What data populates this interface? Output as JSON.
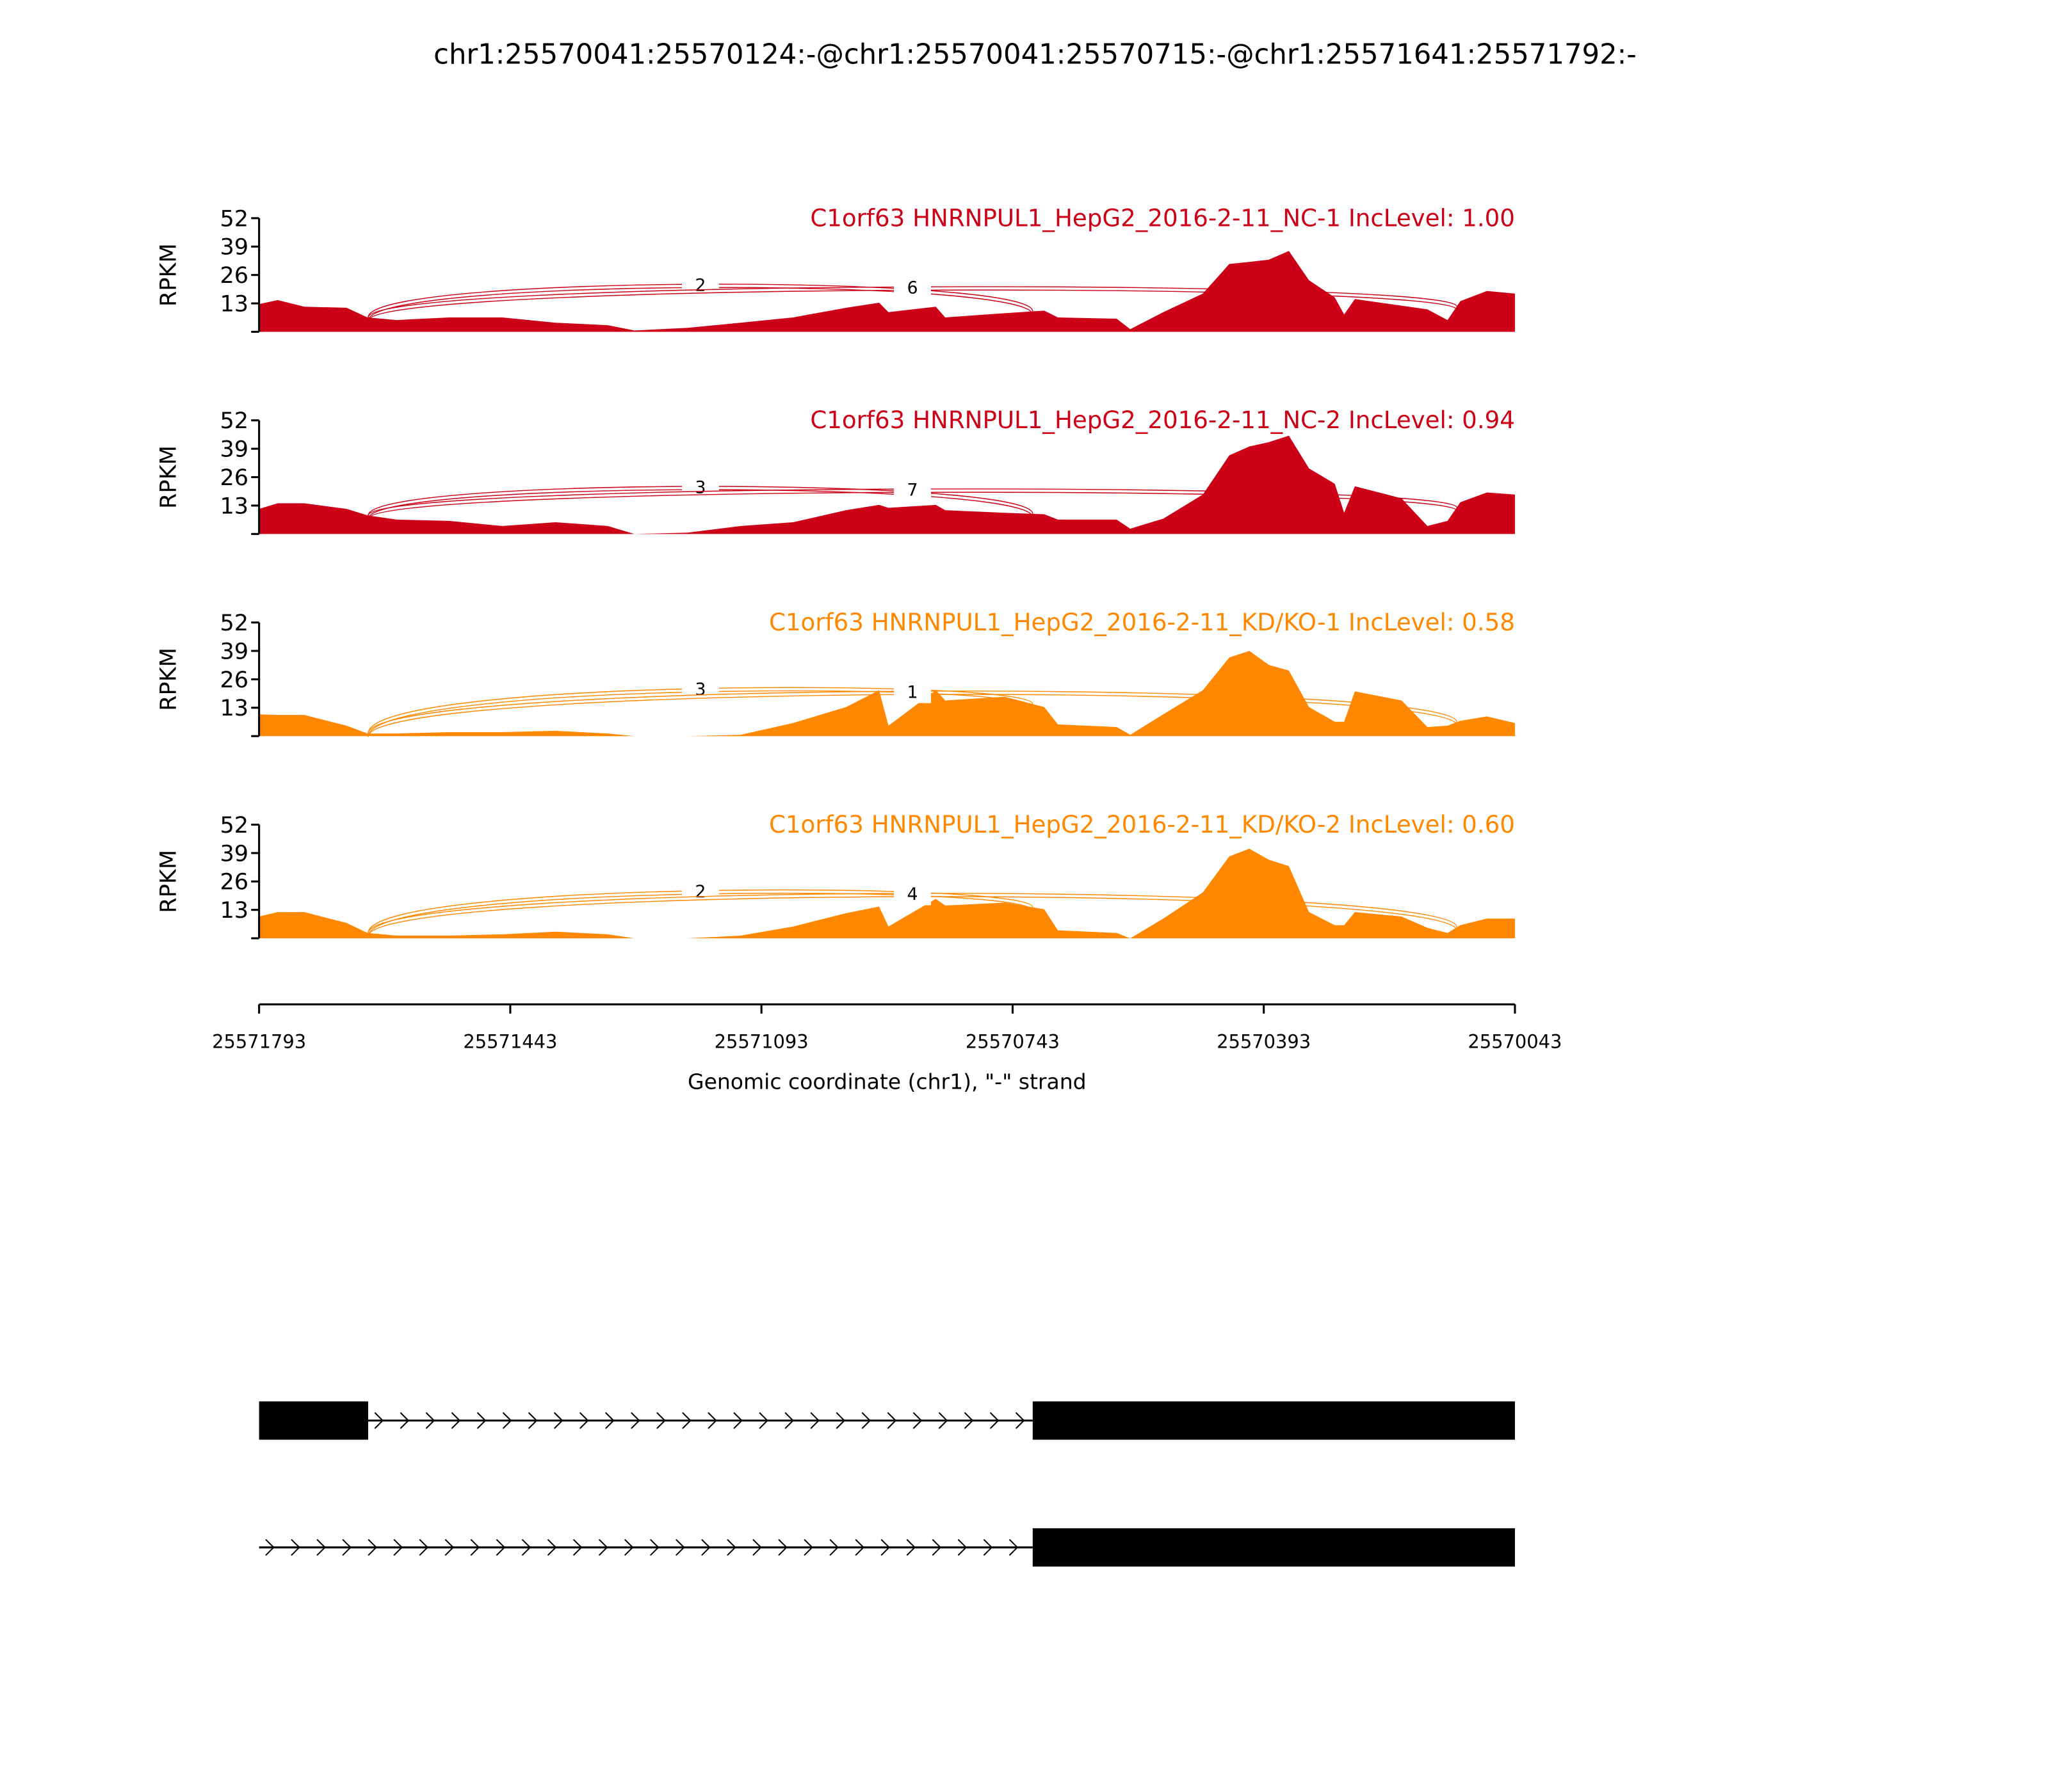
{
  "chart_data": {
    "type": "area",
    "title": "chr1:25570041:25570124:-@chr1:25570041:25570715:-@chr1:25571641:25571792:-",
    "xlabel": "Genomic coordinate (chr1), \"-\" strand",
    "ylabel": "RPKM",
    "xlim": [
      25571793,
      25570043
    ],
    "ylim": [
      0,
      52
    ],
    "yticks": [
      "52",
      "39",
      "26",
      "13"
    ],
    "xticks": [
      "25571793",
      "25571443",
      "25571093",
      "25570743",
      "25570393",
      "25570043"
    ],
    "colors": {
      "NC": "#cc0016",
      "KD": "#ff8800"
    },
    "positions": [
      25571793,
      25571767,
      25571730,
      25571671,
      25571642,
      25571601,
      25571528,
      25571454,
      25571380,
      25571307,
      25571270,
      25571196,
      25571122,
      25571049,
      25570975,
      25570929,
      25570916,
      25570850,
      25570837,
      25570754,
      25570699,
      25570680,
      25570598,
      25570579,
      25570533,
      25570478,
      25570441,
      25570413,
      25570386,
      25570358,
      25570330,
      25570294,
      25570281,
      25570266,
      25570201,
      25570165,
      25570137,
      25570119,
      25570082,
      25570043
    ],
    "series": [
      {
        "name": "C1orf63 HNRNPUL1_HepG2_2016-2-11_NC-1 IncLevel: 1.00",
        "group": "NC",
        "values": [
          12.7,
          14.5,
          11.5,
          11,
          6.6,
          5.4,
          6.6,
          6.6,
          4.2,
          3,
          0.6,
          1.8,
          4.2,
          6.6,
          11,
          13.3,
          9,
          11.5,
          6.6,
          8.5,
          9.7,
          6.6,
          6,
          1.2,
          9,
          17.5,
          31,
          32,
          33,
          37,
          23.6,
          15.7,
          7.9,
          15,
          12,
          10.3,
          5.4,
          14,
          18.7,
          17.5
        ],
        "junctions": [
          {
            "from": 25571641,
            "to": 25570715,
            "count": "2"
          },
          {
            "from": 25571641,
            "to": 25570124,
            "count": "6"
          }
        ]
      },
      {
        "name": "C1orf63 HNRNPUL1_HepG2_2016-2-11_NC-2 IncLevel: 0.94",
        "group": "NC",
        "values": [
          11.5,
          14,
          14,
          11.5,
          8.5,
          6.6,
          6,
          3.6,
          5.4,
          3.6,
          0,
          0.6,
          3.6,
          5.4,
          10.9,
          13.3,
          12,
          13.3,
          10.9,
          9.7,
          9,
          6.6,
          6.6,
          2.4,
          7,
          18,
          36,
          40,
          42,
          45,
          30,
          23,
          9.7,
          21.8,
          16.3,
          3.6,
          6,
          14.5,
          19,
          18
        ],
        "junctions": [
          {
            "from": 25571641,
            "to": 25570715,
            "count": "3"
          },
          {
            "from": 25571641,
            "to": 25570124,
            "count": "7"
          }
        ]
      },
      {
        "name": "C1orf63 HNRNPUL1_HepG2_2016-2-11_KD/KO-1 IncLevel: 0.58",
        "group": "KD",
        "values": [
          10,
          9.7,
          9.7,
          4.8,
          1.2,
          1.2,
          1.8,
          1.8,
          2.4,
          1.2,
          0,
          0,
          0.6,
          6,
          13.3,
          21,
          4.8,
          21,
          16.3,
          18,
          13.3,
          5.4,
          4.2,
          0.6,
          10,
          21,
          36,
          39,
          32.6,
          30,
          13.3,
          6.6,
          6.6,
          20.5,
          16.3,
          4.2,
          4.8,
          7,
          9,
          6
        ],
        "junctions": [
          {
            "from": 25571641,
            "to": 25570715,
            "count": "3"
          },
          {
            "from": 25571641,
            "to": 25570124,
            "count": "1"
          }
        ]
      },
      {
        "name": "C1orf63 HNRNPUL1_HepG2_2016-2-11_KD/KO-2 IncLevel: 0.60",
        "group": "KD",
        "values": [
          10,
          12,
          12,
          7,
          2.4,
          1.2,
          1.2,
          1.8,
          3,
          1.8,
          0,
          0,
          1.2,
          5.4,
          11.5,
          14.5,
          5.4,
          18,
          15,
          16.3,
          13.3,
          3.6,
          2.4,
          0,
          9,
          21,
          37.5,
          41,
          36,
          33,
          12,
          6,
          6,
          12,
          10,
          4.8,
          2.4,
          6,
          9,
          9
        ],
        "junctions": [
          {
            "from": 25571641,
            "to": 25570715,
            "count": "2"
          },
          {
            "from": 25571641,
            "to": 25570124,
            "count": "4"
          }
        ]
      }
    ],
    "transcripts": [
      {
        "exons": [
          [
            25571793,
            25571641
          ],
          [
            25570715,
            25570043
          ]
        ]
      },
      {
        "exons": [
          [
            25570715,
            25570043
          ]
        ],
        "intron_start": 25571793
      }
    ]
  }
}
